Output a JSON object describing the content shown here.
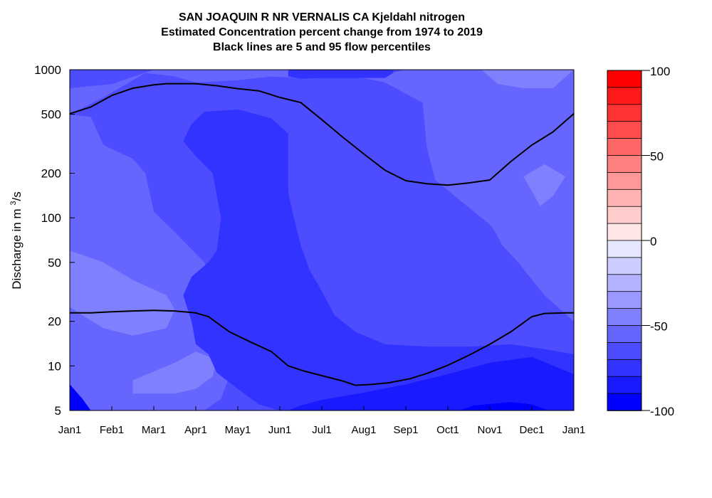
{
  "chart_data": {
    "type": "heatmap",
    "title": [
      "SAN JOAQUIN R NR VERNALIS CA  Kjeldahl nitrogen",
      "Estimated Concentration percent change from 1974 to 2019",
      "Black lines are 5 and 95 flow percentiles"
    ],
    "ylabel": "Discharge in m³/s",
    "y_scale": "log",
    "ylim": [
      5,
      1000
    ],
    "x_ticks": [
      "Jan1",
      "Feb1",
      "Mar1",
      "Apr1",
      "May1",
      "Jun1",
      "Jul1",
      "Aug1",
      "Sep1",
      "Oct1",
      "Nov1",
      "Dec1",
      "Jan1"
    ],
    "y_ticks": [
      {
        "value": 5,
        "label": "5"
      },
      {
        "value": 10,
        "label": "10"
      },
      {
        "value": 20,
        "label": "20"
      },
      {
        "value": 50,
        "label": "50"
      },
      {
        "value": 100,
        "label": "100"
      },
      {
        "value": 200,
        "label": "200"
      },
      {
        "value": 500,
        "label": "500"
      },
      {
        "value": 1000,
        "label": "1000"
      }
    ],
    "colorbar": {
      "min": -100,
      "max": 100,
      "step": 10,
      "tick_labels": [
        "100",
        "50",
        "0",
        "-50",
        "-100"
      ],
      "tick_values": [
        100,
        50,
        0,
        -50,
        -100
      ],
      "colors": [
        "#ff0000",
        "#ff1a1a",
        "#ff3333",
        "#ff4d4d",
        "#ff6666",
        "#ff8080",
        "#ff9999",
        "#ffb3b3",
        "#ffcccc",
        "#ffe6e6",
        "#e6e6ff",
        "#ccccff",
        "#b3b3ff",
        "#9999ff",
        "#8080ff",
        "#6666ff",
        "#4d4dff",
        "#3333ff",
        "#1a1aff",
        "#0000ff"
      ]
    },
    "level_colors": {
      "-95": "#0000ff",
      "-85": "#1a1aff",
      "-75": "#3333ff",
      "-65": "#4d4dff",
      "-55": "#6666ff",
      "-45": "#8080ff",
      "-35": "#9999ff"
    },
    "background_level": -65,
    "regions": [
      {
        "level": -55,
        "points": [
          [
            0.0,
            750
          ],
          [
            1.0,
            800
          ],
          [
            2.0,
            1000
          ],
          [
            6.0,
            1000
          ],
          [
            7.5,
            820
          ],
          [
            8.4,
            600
          ],
          [
            8.5,
            300
          ],
          [
            8.7,
            180
          ],
          [
            10.0,
            90
          ],
          [
            10.8,
            45
          ],
          [
            11.3,
            30
          ],
          [
            12.0,
            20
          ],
          [
            12.0,
            1000
          ],
          [
            11.0,
            1000
          ],
          [
            10.0,
            1000
          ],
          [
            9.0,
            1000
          ],
          [
            8.0,
            1000
          ],
          [
            7.2,
            900
          ],
          [
            6.0,
            880
          ],
          [
            5.5,
            880
          ],
          [
            4.8,
            900
          ],
          [
            4.0,
            850
          ],
          [
            3.0,
            820
          ],
          [
            2.5,
            900
          ],
          [
            1.8,
            950
          ],
          [
            0.8,
            650
          ],
          [
            0.0,
            500
          ]
        ]
      },
      {
        "level": -55,
        "points": [
          [
            0.0,
            500
          ],
          [
            0.5,
            480
          ],
          [
            0.8,
            310
          ],
          [
            1.5,
            250
          ],
          [
            1.8,
            200
          ],
          [
            2.0,
            110
          ],
          [
            2.5,
            80
          ],
          [
            3.2,
            50
          ],
          [
            3.5,
            34
          ],
          [
            3.7,
            20
          ],
          [
            3.8,
            14
          ],
          [
            3.8,
            8.5
          ],
          [
            3.6,
            6.0
          ],
          [
            3.2,
            5.0
          ],
          [
            0.0,
            5.0
          ],
          [
            0.0,
            500
          ]
        ]
      },
      {
        "level": -55,
        "points": [
          [
            8.5,
            185
          ],
          [
            9.2,
            175
          ],
          [
            9.8,
            120
          ],
          [
            10.3,
            65
          ],
          [
            11.0,
            40
          ],
          [
            11.8,
            26
          ],
          [
            12.0,
            20
          ],
          [
            12.0,
            150
          ],
          [
            11.5,
            200
          ],
          [
            11.0,
            190
          ],
          [
            10.0,
            183
          ],
          [
            9.0,
            178
          ]
        ]
      },
      {
        "level": -45,
        "points": [
          [
            0.0,
            60
          ],
          [
            0.8,
            50
          ],
          [
            1.5,
            38
          ],
          [
            2.3,
            30
          ],
          [
            2.5,
            24
          ],
          [
            2.3,
            18
          ],
          [
            1.5,
            16
          ],
          [
            0.8,
            18
          ],
          [
            0.3,
            22
          ],
          [
            0.0,
            25
          ]
        ]
      },
      {
        "level": -45,
        "points": [
          [
            1.5,
            8.0
          ],
          [
            2.5,
            10.5
          ],
          [
            3.0,
            12.5
          ],
          [
            3.5,
            11.0
          ],
          [
            3.4,
            8.5
          ],
          [
            3.0,
            7.0
          ],
          [
            2.5,
            6.5
          ],
          [
            1.5,
            6.5
          ]
        ]
      },
      {
        "level": -45,
        "points": [
          [
            9.8,
            1000
          ],
          [
            10.2,
            800
          ],
          [
            10.8,
            750
          ],
          [
            11.5,
            750
          ],
          [
            12.0,
            1000
          ]
        ]
      },
      {
        "level": -45,
        "points": [
          [
            10.8,
            190
          ],
          [
            11.3,
            230
          ],
          [
            11.8,
            190
          ],
          [
            11.5,
            140
          ],
          [
            11.2,
            120
          ]
        ]
      },
      {
        "level": -75,
        "points": [
          [
            2.7,
            330
          ],
          [
            2.9,
            430
          ],
          [
            3.2,
            520
          ],
          [
            4.0,
            540
          ],
          [
            4.8,
            470
          ],
          [
            5.2,
            370
          ],
          [
            5.2,
            150
          ],
          [
            5.3,
            110
          ],
          [
            5.5,
            65
          ],
          [
            5.7,
            45
          ],
          [
            6.0,
            32
          ],
          [
            6.3,
            22
          ],
          [
            6.8,
            17
          ],
          [
            7.5,
            14
          ],
          [
            8.5,
            13.5
          ],
          [
            9.5,
            13.5
          ],
          [
            10.5,
            14
          ],
          [
            11.3,
            13
          ],
          [
            12.0,
            12
          ],
          [
            12.0,
            5
          ],
          [
            8.0,
            5
          ],
          [
            6.0,
            5
          ],
          [
            5.0,
            5
          ],
          [
            4.5,
            5.5
          ],
          [
            4.0,
            7
          ],
          [
            3.5,
            9
          ],
          [
            3.3,
            12
          ],
          [
            3.0,
            14
          ],
          [
            2.9,
            20
          ],
          [
            2.7,
            30
          ],
          [
            2.9,
            40
          ],
          [
            3.3,
            50
          ],
          [
            3.5,
            60
          ],
          [
            3.6,
            100
          ],
          [
            3.4,
            200
          ],
          [
            3.0,
            260
          ]
        ]
      },
      {
        "level": -85,
        "points": [
          [
            5.2,
            5
          ],
          [
            5.5,
            5.4
          ],
          [
            6.0,
            5.9
          ],
          [
            7.0,
            6.6
          ],
          [
            8.0,
            7.5
          ],
          [
            9.0,
            8.8
          ],
          [
            10.0,
            10.5
          ],
          [
            11.0,
            11.5
          ],
          [
            11.6,
            9.8
          ],
          [
            12.0,
            8.8
          ],
          [
            12.0,
            5
          ]
        ]
      },
      {
        "level": -95,
        "points": [
          [
            9.3,
            5
          ],
          [
            9.6,
            5.4
          ],
          [
            10.5,
            5.7
          ],
          [
            11.0,
            5.5
          ],
          [
            11.4,
            5.0
          ]
        ]
      },
      {
        "level": -95,
        "points": [
          [
            0.0,
            7.5
          ],
          [
            0.3,
            6.0
          ],
          [
            0.5,
            5.0
          ],
          [
            0.0,
            5.0
          ]
        ]
      },
      {
        "level": -75,
        "points": [
          [
            5.2,
            1000
          ],
          [
            5.2,
            900
          ],
          [
            5.5,
            870
          ],
          [
            6.0,
            880
          ],
          [
            6.5,
            880
          ],
          [
            7.5,
            880
          ],
          [
            7.7,
            950
          ],
          [
            7.7,
            1000
          ]
        ]
      }
    ],
    "lines": [
      {
        "label": "95th percentile flow",
        "points": [
          [
            0,
            505
          ],
          [
            0.5,
            560
          ],
          [
            1,
            670
          ],
          [
            1.5,
            750
          ],
          [
            2,
            790
          ],
          [
            2.3,
            805
          ],
          [
            3,
            805
          ],
          [
            3.5,
            780
          ],
          [
            4,
            745
          ],
          [
            4.5,
            720
          ],
          [
            5,
            650
          ],
          [
            5.5,
            600
          ],
          [
            6,
            460
          ],
          [
            6.5,
            350
          ],
          [
            7,
            270
          ],
          [
            7.5,
            210
          ],
          [
            8,
            178
          ],
          [
            8.5,
            170
          ],
          [
            9,
            166
          ],
          [
            9.5,
            172
          ],
          [
            10,
            180
          ],
          [
            10.5,
            240
          ],
          [
            11,
            310
          ],
          [
            11.5,
            380
          ],
          [
            12,
            505
          ]
        ]
      },
      {
        "label": "5th percentile flow",
        "points": [
          [
            0,
            22.8
          ],
          [
            0.5,
            22.8
          ],
          [
            1,
            23.2
          ],
          [
            1.5,
            23.5
          ],
          [
            2,
            23.7
          ],
          [
            2.5,
            23.5
          ],
          [
            3,
            22.8
          ],
          [
            3.3,
            21.5
          ],
          [
            3.8,
            17
          ],
          [
            4.3,
            14.5
          ],
          [
            4.8,
            12.5
          ],
          [
            5.2,
            10
          ],
          [
            5.6,
            9.2
          ],
          [
            6.0,
            8.6
          ],
          [
            6.5,
            7.9
          ],
          [
            6.8,
            7.4
          ],
          [
            7.2,
            7.5
          ],
          [
            7.6,
            7.7
          ],
          [
            8.1,
            8.2
          ],
          [
            8.5,
            8.9
          ],
          [
            9,
            10.1
          ],
          [
            9.5,
            11.8
          ],
          [
            10,
            14
          ],
          [
            10.5,
            17
          ],
          [
            11,
            21.5
          ],
          [
            11.3,
            22.6
          ],
          [
            11.8,
            22.8
          ],
          [
            12,
            22.8
          ]
        ]
      }
    ]
  }
}
